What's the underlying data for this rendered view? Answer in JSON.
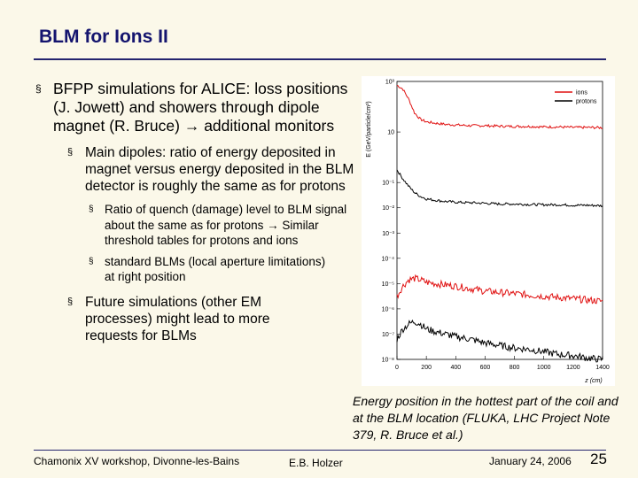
{
  "slide": {
    "title": "BLM for Ions II",
    "bullets": {
      "b1": {
        "marker": "§",
        "text": "BFPP simulations for ALICE: loss positions (J. Jowett) and showers through dipole magnet (R. Bruce) → additional monitors"
      },
      "b1_1": {
        "marker": "§",
        "text": "Main dipoles: ratio of energy deposited in magnet versus energy deposited in the BLM detector is roughly the same as for protons"
      },
      "b1_1_1": {
        "marker": "§",
        "text": "Ratio of quench (damage) level to BLM signal about the same as for protons → Similar threshold tables for protons and ions"
      },
      "b1_1_2": {
        "marker": "§",
        "text": "standard BLMs (local aperture limitations) at right position"
      },
      "b1_2": {
        "marker": "§",
        "text": "Future simulations (other EM processes) might lead to more requests for BLMs"
      }
    },
    "caption": "Energy position in the hottest part of the coil and at the BLM location (FLUKA, LHC Project Note 379, R. Bruce et al.)",
    "footer": {
      "left": "Chamonix XV workshop, Divonne-les-Bains",
      "middle": "E.B. Holzer",
      "date": "January 24, 2006",
      "page": "25"
    }
  },
  "chart_data": {
    "type": "line",
    "title": "",
    "xlabel": "z (cm)",
    "ylabel": "E (GeV/particle/cm³)",
    "xlim": [
      0,
      1400
    ],
    "ylim_log10": [
      -8,
      3
    ],
    "x_ticks": [
      "0",
      "200",
      "400",
      "600",
      "800",
      "1000",
      "1200",
      "1400"
    ],
    "y_ticks": [
      "10³",
      "10",
      "10⁻¹",
      "10⁻²",
      "10⁻³",
      "10⁻⁴",
      "10⁻⁵",
      "10⁻⁶",
      "10⁻⁷",
      "10⁻⁸"
    ],
    "legend": [
      "ions",
      "protons"
    ],
    "legend_position": "top-right",
    "colors": {
      "ions": "#e01010",
      "protons": "#000000"
    },
    "series": [
      {
        "name": "ions",
        "location": "coil",
        "x": [
          0,
          40,
          80,
          120,
          160,
          200,
          260,
          330,
          400,
          500,
          600,
          700,
          800,
          900,
          1000,
          1100,
          1200,
          1300,
          1400
        ],
        "log10_values": [
          2.85,
          2.7,
          2.3,
          1.75,
          1.5,
          1.4,
          1.35,
          1.3,
          1.28,
          1.25,
          1.25,
          1.23,
          1.22,
          1.22,
          1.2,
          1.2,
          1.18,
          1.18,
          1.17
        ]
      },
      {
        "name": "protons",
        "location": "coil",
        "x": [
          0,
          40,
          80,
          120,
          160,
          200,
          260,
          330,
          400,
          500,
          600,
          700,
          800,
          900,
          1000,
          1100,
          1200,
          1300,
          1400
        ],
        "log10_values": [
          -0.5,
          -0.85,
          -1.15,
          -1.4,
          -1.55,
          -1.65,
          -1.7,
          -1.75,
          -1.78,
          -1.8,
          -1.82,
          -1.85,
          -1.85,
          -1.87,
          -1.88,
          -1.88,
          -1.9,
          -1.9,
          -1.92
        ]
      },
      {
        "name": "ions",
        "location": "BLM",
        "x": [
          0,
          40,
          80,
          120,
          160,
          200,
          260,
          330,
          400,
          500,
          600,
          700,
          800,
          900,
          1000,
          1100,
          1200,
          1300,
          1400
        ],
        "log10_values": [
          -5.5,
          -5.1,
          -4.85,
          -4.8,
          -4.85,
          -4.95,
          -5.0,
          -5.05,
          -5.1,
          -5.2,
          -5.3,
          -5.35,
          -5.4,
          -5.45,
          -5.5,
          -5.55,
          -5.6,
          -5.65,
          -5.7
        ]
      },
      {
        "name": "protons",
        "location": "BLM",
        "x": [
          0,
          40,
          80,
          120,
          160,
          200,
          260,
          330,
          400,
          500,
          600,
          700,
          800,
          900,
          1000,
          1100,
          1200,
          1300,
          1400
        ],
        "log10_values": [
          -7.2,
          -6.8,
          -6.6,
          -6.5,
          -6.6,
          -6.8,
          -6.9,
          -7.0,
          -7.1,
          -7.2,
          -7.35,
          -7.45,
          -7.55,
          -7.6,
          -7.7,
          -7.8,
          -7.85,
          -7.95,
          -8.0
        ]
      }
    ]
  }
}
